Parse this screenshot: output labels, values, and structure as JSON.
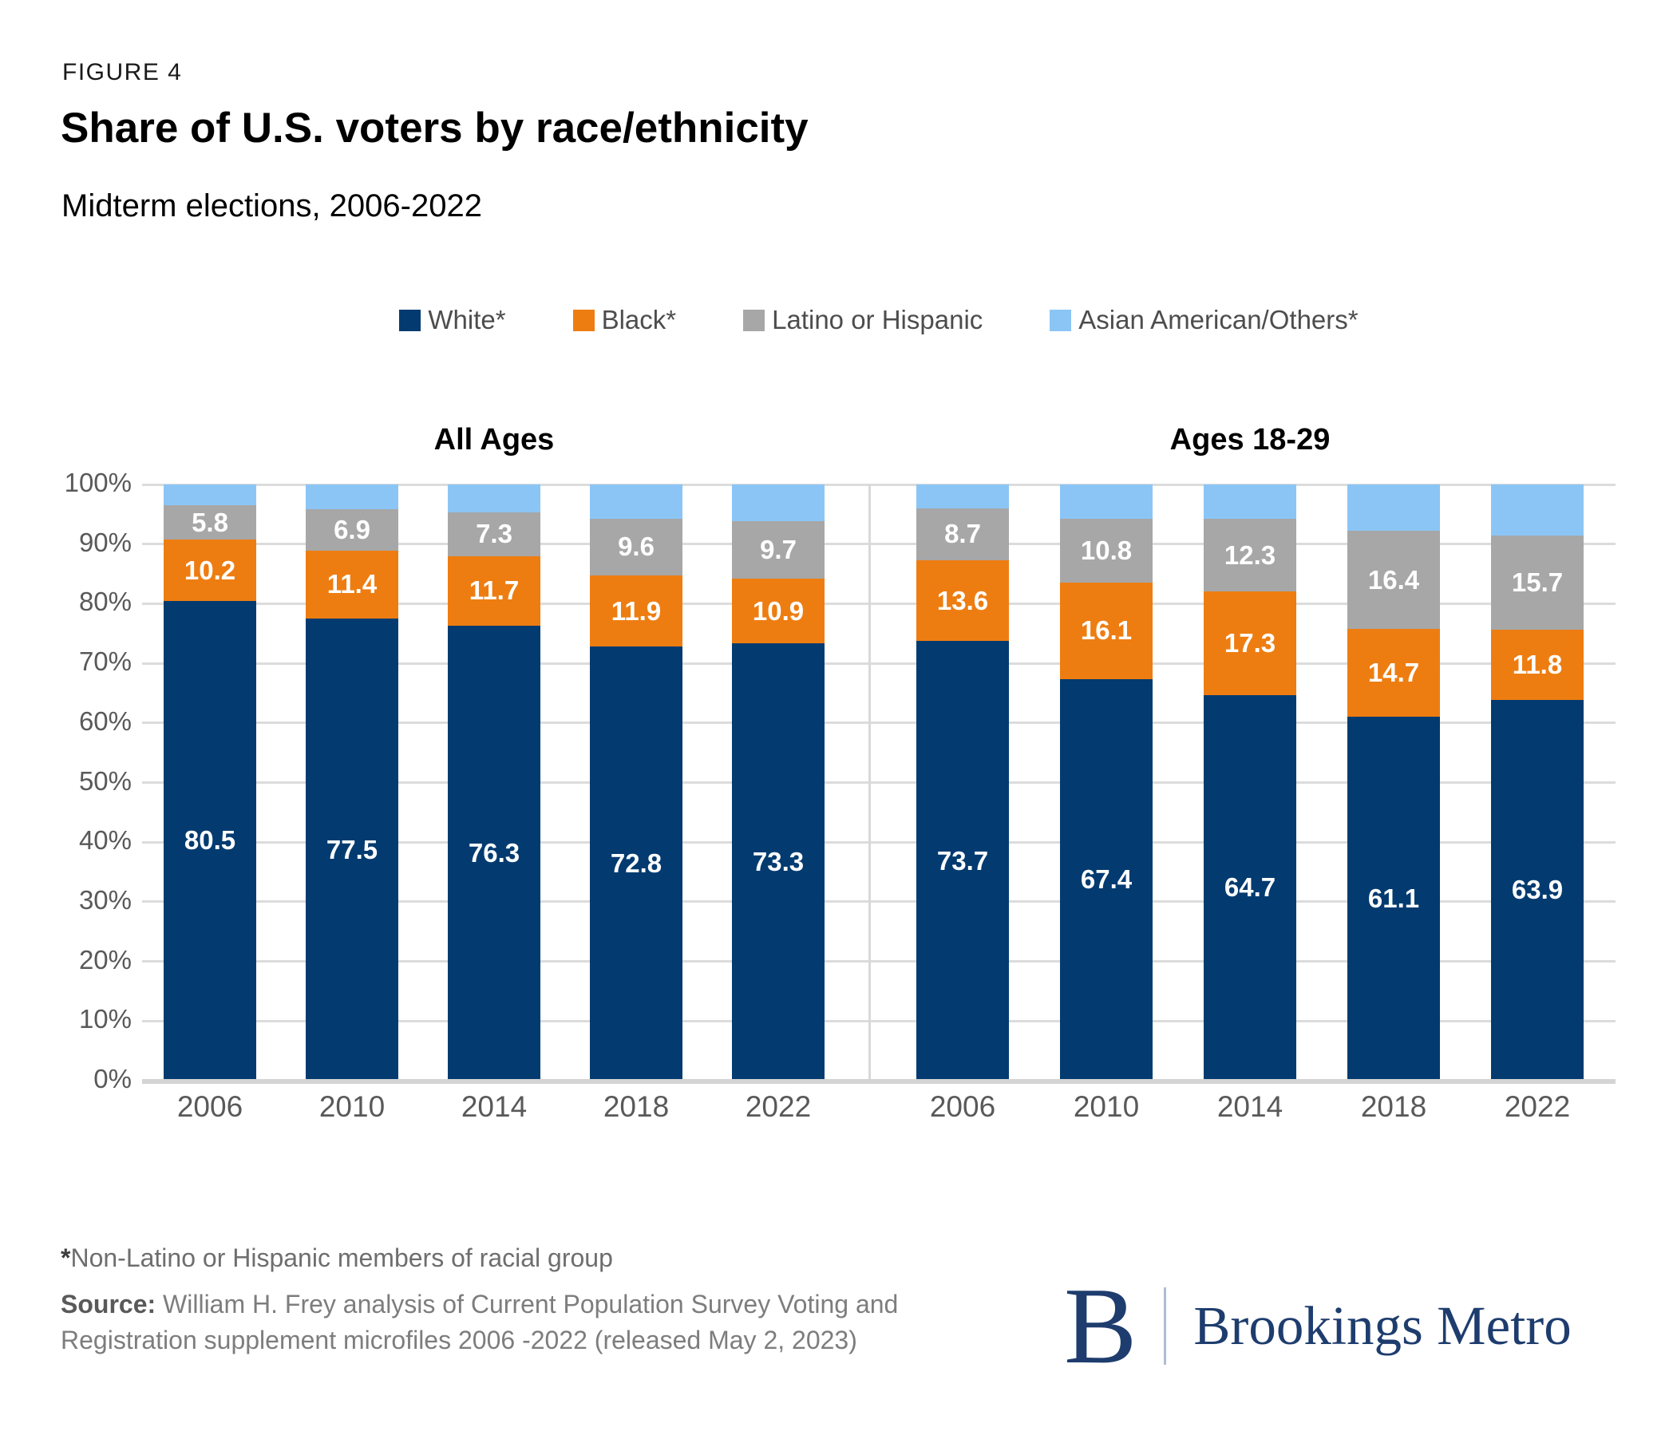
{
  "header": {
    "figure_label": "FIGURE 4",
    "title": "Share of U.S. voters by race/ethnicity",
    "subtitle": "Midterm elections, 2006-2022"
  },
  "chart_data": {
    "type": "bar",
    "stacked": true,
    "value_unit": "percent",
    "ylim": [
      0,
      100
    ],
    "grid": true,
    "legend_position": "top-center",
    "yticks": [
      "0%",
      "10%",
      "20%",
      "30%",
      "40%",
      "50%",
      "60%",
      "70%",
      "80%",
      "90%",
      "100%"
    ],
    "legend": [
      {
        "name": "White*",
        "color": "#033b70"
      },
      {
        "name": "Black*",
        "color": "#ee7d11"
      },
      {
        "name": "Latino or Hispanic",
        "color": "#a7a7a7"
      },
      {
        "name": "Asian American/Others*",
        "color": "#8bc5f6"
      }
    ],
    "panels": [
      {
        "title": "All Ages",
        "categories": [
          "2006",
          "2010",
          "2014",
          "2018",
          "2022"
        ],
        "series": [
          {
            "name": "White*",
            "values": [
              80.5,
              77.5,
              76.3,
              72.8,
              73.3
            ],
            "show_labels": true
          },
          {
            "name": "Black*",
            "values": [
              10.2,
              11.4,
              11.7,
              11.9,
              10.9
            ],
            "show_labels": true
          },
          {
            "name": "Latino or Hispanic",
            "values": [
              5.8,
              6.9,
              7.3,
              9.6,
              9.7
            ],
            "show_labels": true
          },
          {
            "name": "Asian American/Others*",
            "values": [
              3.5,
              4.2,
              4.7,
              5.7,
              6.1
            ],
            "show_labels": false
          }
        ]
      },
      {
        "title": "Ages 18-29",
        "categories": [
          "2006",
          "2010",
          "2014",
          "2018",
          "2022"
        ],
        "series": [
          {
            "name": "White*",
            "values": [
              73.7,
              67.4,
              64.7,
              61.1,
              63.9
            ],
            "show_labels": true
          },
          {
            "name": "Black*",
            "values": [
              13.6,
              16.1,
              17.3,
              14.7,
              11.8
            ],
            "show_labels": true
          },
          {
            "name": "Latino or Hispanic",
            "values": [
              8.7,
              10.8,
              12.3,
              16.4,
              15.7
            ],
            "show_labels": true
          },
          {
            "name": "Asian American/Others*",
            "values": [
              4.0,
              5.7,
              5.7,
              7.8,
              8.6
            ],
            "show_labels": false
          }
        ]
      }
    ]
  },
  "footer": {
    "footnote_marker": "*",
    "footnote_text": "Non-Latino or Hispanic members of racial group",
    "source_label": "Source:",
    "source_text": " William H. Frey analysis of Current Population Survey Voting and Registration supplement microfiles 2006 -2022 (released May 2, 2023)",
    "logo": {
      "letter": "B",
      "name": "Brookings Metro"
    }
  },
  "colors": {
    "white_series": "#033b70",
    "black_series": "#ee7d11",
    "latino_series": "#a7a7a7",
    "asian_series": "#8bc5f6",
    "gridline": "#dcdcdc",
    "axis_text": "#595959",
    "logo_navy": "#1e3d6e"
  }
}
